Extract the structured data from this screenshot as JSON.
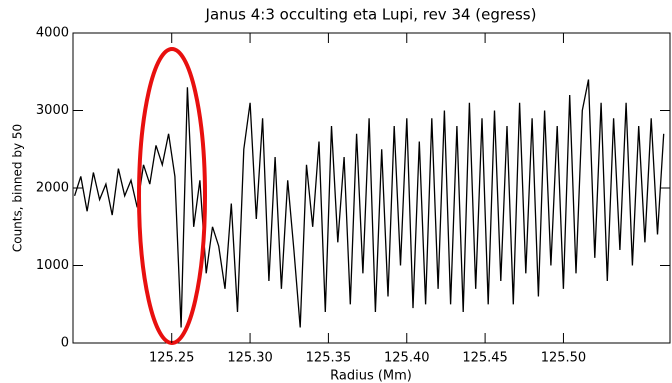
{
  "chart_data": {
    "type": "line",
    "title": "Janus 4:3 occulting eta Lupi, rev 34 (egress)",
    "xlabel": "Radius (Mm)",
    "ylabel": "Counts, binned by 50",
    "color": "#000000",
    "x": [
      125.188,
      125.192,
      125.196,
      125.2,
      125.204,
      125.208,
      125.212,
      125.216,
      125.22,
      125.224,
      125.228,
      125.232,
      125.236,
      125.24,
      125.244,
      125.248,
      125.252,
      125.256,
      125.26,
      125.264,
      125.268,
      125.272,
      125.276,
      125.28,
      125.284,
      125.288,
      125.292,
      125.296,
      125.3,
      125.304,
      125.308,
      125.312,
      125.316,
      125.32,
      125.324,
      125.328,
      125.332,
      125.336,
      125.34,
      125.344,
      125.348,
      125.352,
      125.356,
      125.36,
      125.364,
      125.368,
      125.372,
      125.376,
      125.38,
      125.384,
      125.388,
      125.392,
      125.396,
      125.4,
      125.404,
      125.408,
      125.412,
      125.416,
      125.42,
      125.424,
      125.428,
      125.432,
      125.436,
      125.44,
      125.444,
      125.448,
      125.452,
      125.456,
      125.46,
      125.464,
      125.468,
      125.472,
      125.476,
      125.48,
      125.484,
      125.488,
      125.492,
      125.496,
      125.5,
      125.504,
      125.508,
      125.512,
      125.516,
      125.52,
      125.524,
      125.528,
      125.532,
      125.536,
      125.54,
      125.544,
      125.548,
      125.552,
      125.556,
      125.56,
      125.564
    ],
    "values": [
      1900,
      2150,
      1700,
      2200,
      1850,
      2050,
      1650,
      2250,
      1900,
      2100,
      1750,
      2300,
      2050,
      2550,
      2300,
      2700,
      2150,
      200,
      3300,
      1500,
      2100,
      900,
      1500,
      1250,
      700,
      1800,
      400,
      2500,
      3100,
      1600,
      2900,
      800,
      2400,
      700,
      2100,
      1200,
      200,
      2300,
      1500,
      2600,
      400,
      2800,
      1300,
      2400,
      500,
      2700,
      900,
      2900,
      400,
      2500,
      600,
      2800,
      1000,
      2900,
      450,
      2600,
      500,
      2900,
      700,
      3000,
      500,
      2800,
      400,
      3100,
      700,
      2900,
      500,
      3000,
      800,
      2800,
      500,
      3100,
      900,
      2900,
      600,
      3000,
      1000,
      2800,
      700,
      3200,
      900,
      3000,
      3400,
      1100,
      3100,
      800,
      2900,
      1200,
      3100,
      1000,
      2800,
      1300,
      2900,
      1400,
      2700
    ],
    "xlim": [
      125.187,
      125.568
    ],
    "ylim": [
      0,
      4000
    ],
    "xticks": [
      125.25,
      {
        "value": 125.3,
        "label": "125.30"
      },
      125.35,
      {
        "value": 125.4,
        "label": "125.40"
      },
      125.45,
      {
        "value": 125.5,
        "label": "125.50"
      }
    ],
    "yticks": [
      0,
      1000,
      2000,
      3000,
      4000
    ]
  }
}
